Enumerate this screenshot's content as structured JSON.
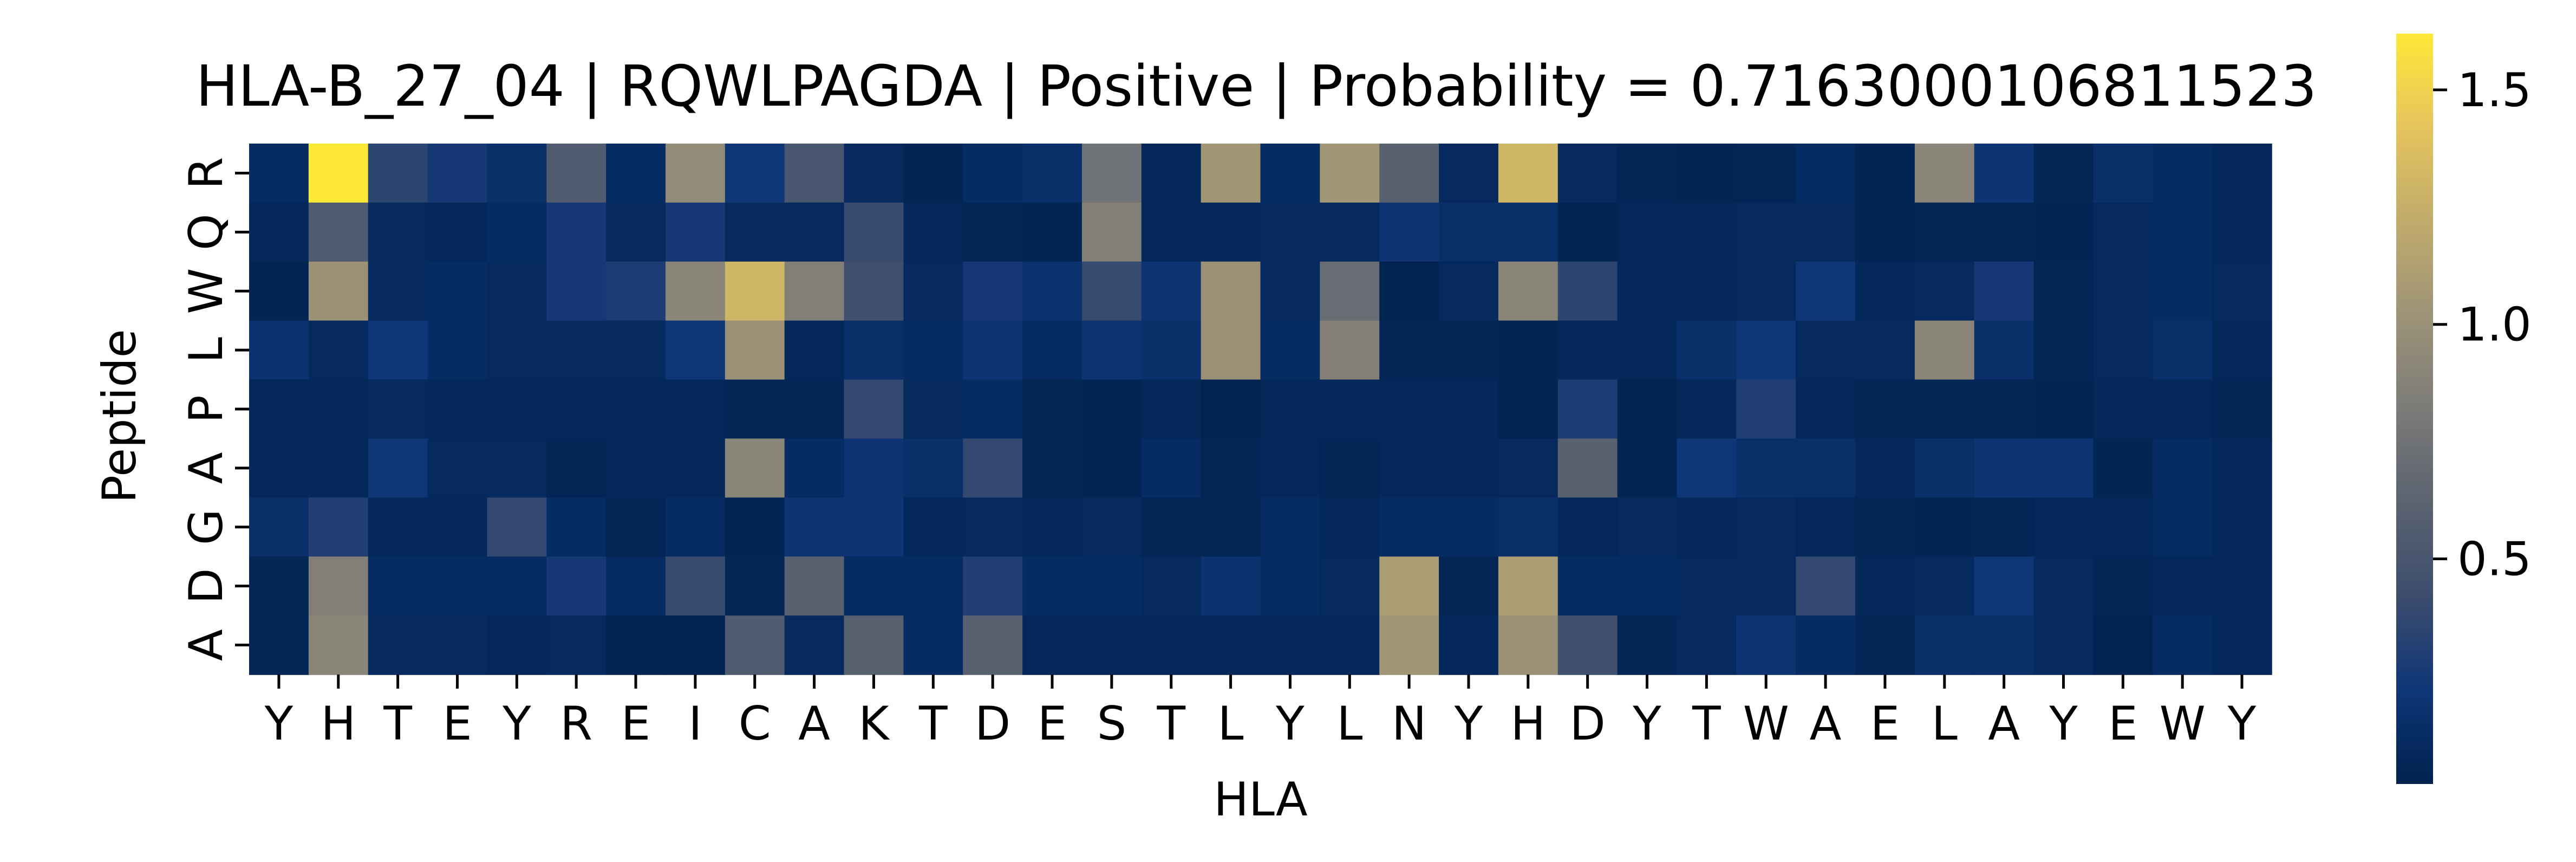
{
  "chart_data": {
    "type": "heatmap",
    "title": "HLA-B_27_04 | RQWLPAGDA | Positive | Probability = 0.7163000106811523",
    "xlabel": "HLA",
    "ylabel": "Peptide",
    "x_labels": [
      "Y",
      "H",
      "T",
      "E",
      "Y",
      "R",
      "E",
      "I",
      "C",
      "A",
      "K",
      "T",
      "D",
      "E",
      "S",
      "T",
      "L",
      "Y",
      "L",
      "N",
      "Y",
      "H",
      "D",
      "Y",
      "T",
      "W",
      "A",
      "E",
      "L",
      "A",
      "Y",
      "E",
      "W",
      "Y"
    ],
    "y_labels": [
      "R",
      "Q",
      "W",
      "L",
      "P",
      "A",
      "G",
      "D",
      "A"
    ],
    "colormap": "cividis",
    "vmin": 0.02,
    "vmax": 1.62,
    "colorbar_ticks": [
      0.5,
      1.0,
      1.5
    ],
    "colorbar_tick_labels": [
      "0.5",
      "1.0",
      "1.5"
    ],
    "values": [
      [
        0.12,
        1.62,
        0.35,
        0.25,
        0.15,
        0.55,
        0.12,
        0.95,
        0.22,
        0.5,
        0.1,
        0.05,
        0.12,
        0.15,
        0.75,
        0.08,
        1.05,
        0.12,
        1.05,
        0.6,
        0.1,
        1.3,
        0.1,
        0.06,
        0.05,
        0.06,
        0.12,
        0.05,
        0.9,
        0.2,
        0.06,
        0.15,
        0.12,
        0.08
      ],
      [
        0.08,
        0.55,
        0.1,
        0.08,
        0.12,
        0.25,
        0.1,
        0.25,
        0.1,
        0.1,
        0.4,
        0.08,
        0.06,
        0.05,
        0.85,
        0.08,
        0.08,
        0.1,
        0.1,
        0.2,
        0.15,
        0.15,
        0.05,
        0.08,
        0.08,
        0.1,
        0.1,
        0.05,
        0.06,
        0.06,
        0.05,
        0.1,
        0.12,
        0.08
      ],
      [
        0.05,
        1.0,
        0.1,
        0.12,
        0.1,
        0.25,
        0.28,
        0.9,
        1.3,
        0.85,
        0.45,
        0.1,
        0.25,
        0.18,
        0.4,
        0.2,
        1.0,
        0.1,
        0.7,
        0.03,
        0.1,
        0.9,
        0.35,
        0.08,
        0.08,
        0.1,
        0.22,
        0.08,
        0.1,
        0.25,
        0.06,
        0.1,
        0.12,
        0.1
      ],
      [
        0.18,
        0.1,
        0.22,
        0.12,
        0.1,
        0.1,
        0.1,
        0.22,
        1.0,
        0.08,
        0.15,
        0.12,
        0.2,
        0.12,
        0.2,
        0.15,
        1.0,
        0.12,
        0.85,
        0.06,
        0.06,
        0.05,
        0.08,
        0.08,
        0.15,
        0.22,
        0.1,
        0.1,
        0.9,
        0.15,
        0.06,
        0.1,
        0.15,
        0.08
      ],
      [
        0.08,
        0.08,
        0.1,
        0.08,
        0.08,
        0.08,
        0.08,
        0.08,
        0.06,
        0.06,
        0.38,
        0.1,
        0.12,
        0.06,
        0.04,
        0.08,
        0.04,
        0.08,
        0.08,
        0.08,
        0.08,
        0.04,
        0.28,
        0.04,
        0.08,
        0.3,
        0.08,
        0.06,
        0.06,
        0.06,
        0.05,
        0.08,
        0.08,
        0.06
      ],
      [
        0.08,
        0.08,
        0.22,
        0.1,
        0.1,
        0.06,
        0.08,
        0.08,
        0.9,
        0.12,
        0.2,
        0.15,
        0.38,
        0.06,
        0.05,
        0.12,
        0.06,
        0.08,
        0.06,
        0.08,
        0.08,
        0.1,
        0.6,
        0.05,
        0.22,
        0.15,
        0.15,
        0.08,
        0.15,
        0.2,
        0.2,
        0.05,
        0.12,
        0.08
      ],
      [
        0.15,
        0.3,
        0.08,
        0.08,
        0.38,
        0.12,
        0.06,
        0.12,
        0.04,
        0.2,
        0.2,
        0.08,
        0.1,
        0.08,
        0.1,
        0.06,
        0.06,
        0.12,
        0.08,
        0.12,
        0.12,
        0.15,
        0.08,
        0.1,
        0.08,
        0.1,
        0.08,
        0.06,
        0.05,
        0.06,
        0.08,
        0.08,
        0.12,
        0.08
      ],
      [
        0.06,
        0.85,
        0.12,
        0.12,
        0.12,
        0.25,
        0.12,
        0.4,
        0.06,
        0.6,
        0.12,
        0.12,
        0.3,
        0.12,
        0.12,
        0.1,
        0.18,
        0.12,
        0.1,
        1.1,
        0.06,
        1.1,
        0.12,
        0.12,
        0.1,
        0.1,
        0.38,
        0.08,
        0.1,
        0.22,
        0.1,
        0.06,
        0.08,
        0.08
      ],
      [
        0.06,
        0.9,
        0.1,
        0.1,
        0.08,
        0.1,
        0.04,
        0.04,
        0.55,
        0.1,
        0.6,
        0.12,
        0.6,
        0.08,
        0.08,
        0.08,
        0.08,
        0.08,
        0.08,
        1.05,
        0.08,
        1.0,
        0.45,
        0.06,
        0.1,
        0.2,
        0.12,
        0.06,
        0.15,
        0.15,
        0.1,
        0.04,
        0.12,
        0.08
      ]
    ]
  }
}
